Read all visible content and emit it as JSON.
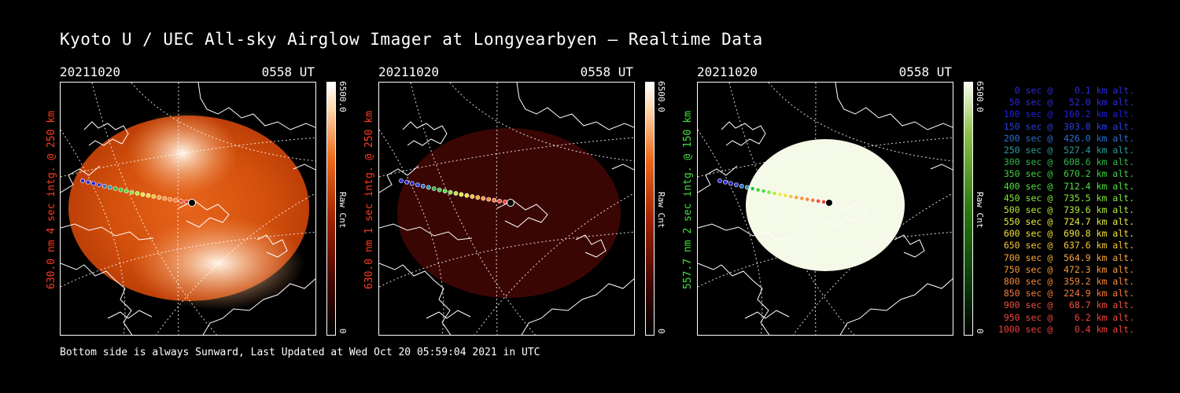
{
  "title": "Kyoto U / UEC All-sky Airglow Imager at Longyearbyen — Realtime Data",
  "footer": "Bottom side is always Sunward, Last Updated at Wed Oct 20 05:59:04 2021 in UTC",
  "panels": [
    {
      "date": "20211020",
      "time": "0558 UT",
      "ylabel": "630.0 nm 4 sec intg. @ 250 km",
      "label_color": "#ff3b1f",
      "cbar_max": "6500.0",
      "cbar_min": "0",
      "cbar_unit": "Raw Cnt",
      "cbar_scheme": "orange",
      "image_style": "bright-orange"
    },
    {
      "date": "20211020",
      "time": "0558 UT",
      "ylabel": "630.0 nm 1 sec intg. @ 250 km",
      "label_color": "#ff3b1f",
      "cbar_max": "6500.0",
      "cbar_min": "0",
      "cbar_unit": "Raw Cnt",
      "cbar_scheme": "orange",
      "image_style": "dark-red"
    },
    {
      "date": "20211020",
      "time": "0558 UT",
      "ylabel": "557.7 nm 2 sec intg. @ 150 km",
      "label_color": "#3fe03f",
      "cbar_max": "6500.0",
      "cbar_min": "0",
      "cbar_unit": "Raw Cnt",
      "cbar_scheme": "green",
      "image_style": "saturated-white"
    }
  ],
  "trajectory_legend": [
    {
      "text": "   0 sec @    0.1 km alt.",
      "color": "#2b2bd8"
    },
    {
      "text": "  50 sec @   52.0 km alt.",
      "color": "#2b2bd8"
    },
    {
      "text": " 100 sec @  160.2 km alt.",
      "color": "#2020e0"
    },
    {
      "text": " 150 sec @  303.8 km alt.",
      "color": "#2a3fe0"
    },
    {
      "text": " 200 sec @  426.0 km alt.",
      "color": "#2a6fd0"
    },
    {
      "text": " 250 sec @  527.4 km alt.",
      "color": "#2a9a9a"
    },
    {
      "text": " 300 sec @  608.6 km alt.",
      "color": "#2fb84a"
    },
    {
      "text": " 350 sec @  670.2 km alt.",
      "color": "#3fd03f"
    },
    {
      "text": " 400 sec @  712.4 km alt.",
      "color": "#4fe03f"
    },
    {
      "text": " 450 sec @  735.5 km alt.",
      "color": "#7fe83f"
    },
    {
      "text": " 500 sec @  739.6 km alt.",
      "color": "#b4ec3f"
    },
    {
      "text": " 550 sec @  724.7 km alt.",
      "color": "#e8ec3f"
    },
    {
      "text": " 600 sec @  690.8 km alt.",
      "color": "#f4e23a"
    },
    {
      "text": " 650 sec @  637.6 km alt.",
      "color": "#f5c53a"
    },
    {
      "text": " 700 sec @  564.9 km alt.",
      "color": "#f5a83a"
    },
    {
      "text": " 750 sec @  472.3 km alt.",
      "color": "#f59a3a"
    },
    {
      "text": " 800 sec @  359.2 km alt.",
      "color": "#f58a3a"
    },
    {
      "text": " 850 sec @  224.9 km alt.",
      "color": "#f57a3a"
    },
    {
      "text": " 900 sec @   68.7 km alt.",
      "color": "#f0503a"
    },
    {
      "text": " 950 sec @    6.2 km alt.",
      "color": "#f0453a"
    },
    {
      "text": "1000 sec @    0.4 km alt.",
      "color": "#f0403a"
    }
  ]
}
